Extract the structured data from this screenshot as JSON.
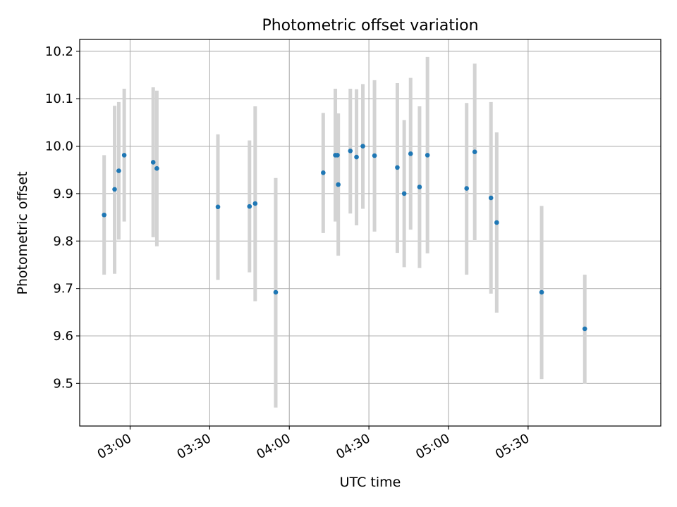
{
  "chart_data": {
    "type": "scatter",
    "title": "Photometric offset variation",
    "xlabel": "UTC time",
    "ylabel": "Photometric offset",
    "x_is_time": true,
    "xlim": [
      "02:41",
      "06:20"
    ],
    "ylim": [
      9.41,
      10.225
    ],
    "x_ticks": [
      "03:00",
      "03:30",
      "04:00",
      "04:30",
      "05:00",
      "05:30"
    ],
    "y_ticks": [
      9.5,
      9.6,
      9.7,
      9.8,
      9.9,
      10.0,
      10.1,
      10.2
    ],
    "y_tick_labels": [
      "9.5",
      "9.6",
      "9.7",
      "9.8",
      "9.9",
      "10.0",
      "10.1",
      "10.2"
    ],
    "grid": true,
    "colors": {
      "point": "#1f77b4",
      "errorbar": "#d3d3d3",
      "grid": "#b0b0b0"
    },
    "points": [
      {
        "x": "02:50:13",
        "y": 9.855,
        "ylo": 9.729,
        "yhi": 9.981
      },
      {
        "x": "02:54:10",
        "y": 9.909,
        "ylo": 9.731,
        "yhi": 10.085
      },
      {
        "x": "02:55:44",
        "y": 9.948,
        "ylo": 9.803,
        "yhi": 10.093
      },
      {
        "x": "02:57:47",
        "y": 9.981,
        "ylo": 9.841,
        "yhi": 10.121
      },
      {
        "x": "03:08:42",
        "y": 9.966,
        "ylo": 9.808,
        "yhi": 10.124
      },
      {
        "x": "03:10:05",
        "y": 9.953,
        "ylo": 9.789,
        "yhi": 10.117
      },
      {
        "x": "03:33:06",
        "y": 9.872,
        "ylo": 9.718,
        "yhi": 10.025
      },
      {
        "x": "03:45:00",
        "y": 9.873,
        "ylo": 9.734,
        "yhi": 10.012
      },
      {
        "x": "03:47:08",
        "y": 9.879,
        "ylo": 9.673,
        "yhi": 10.084
      },
      {
        "x": "03:54:53",
        "y": 9.692,
        "ylo": 9.449,
        "yhi": 9.933
      },
      {
        "x": "04:12:47",
        "y": 9.944,
        "ylo": 9.817,
        "yhi": 10.07
      },
      {
        "x": "04:17:21",
        "y": 9.981,
        "ylo": 9.841,
        "yhi": 10.121
      },
      {
        "x": "04:18:08",
        "y": 9.981,
        "ylo": 9.893,
        "yhi": 10.069
      },
      {
        "x": "04:18:27",
        "y": 9.919,
        "ylo": 9.769,
        "yhi": 10.069
      },
      {
        "x": "04:23:00",
        "y": 9.99,
        "ylo": 9.858,
        "yhi": 10.121
      },
      {
        "x": "04:25:20",
        "y": 9.977,
        "ylo": 9.833,
        "yhi": 10.12
      },
      {
        "x": "04:27:43",
        "y": 10.0,
        "ylo": 9.868,
        "yhi": 10.131
      },
      {
        "x": "04:32:07",
        "y": 9.98,
        "ylo": 9.82,
        "yhi": 10.139
      },
      {
        "x": "04:40:43",
        "y": 9.955,
        "ylo": 9.775,
        "yhi": 10.133
      },
      {
        "x": "04:43:18",
        "y": 9.9,
        "ylo": 9.745,
        "yhi": 10.055
      },
      {
        "x": "04:45:43",
        "y": 9.984,
        "ylo": 9.824,
        "yhi": 10.144
      },
      {
        "x": "04:49:05",
        "y": 9.914,
        "ylo": 9.743,
        "yhi": 10.084
      },
      {
        "x": "04:52:04",
        "y": 9.981,
        "ylo": 9.774,
        "yhi": 10.188
      },
      {
        "x": "05:06:50",
        "y": 9.911,
        "ylo": 9.729,
        "yhi": 10.091
      },
      {
        "x": "05:09:53",
        "y": 9.988,
        "ylo": 9.802,
        "yhi": 10.174
      },
      {
        "x": "05:16:00",
        "y": 9.891,
        "ylo": 9.689,
        "yhi": 10.093
      },
      {
        "x": "05:18:10",
        "y": 9.839,
        "ylo": 9.649,
        "yhi": 10.029
      },
      {
        "x": "05:35:06",
        "y": 9.692,
        "ylo": 9.509,
        "yhi": 9.874
      },
      {
        "x": "05:51:22",
        "y": 9.615,
        "ylo": 9.499,
        "yhi": 9.729
      }
    ]
  }
}
